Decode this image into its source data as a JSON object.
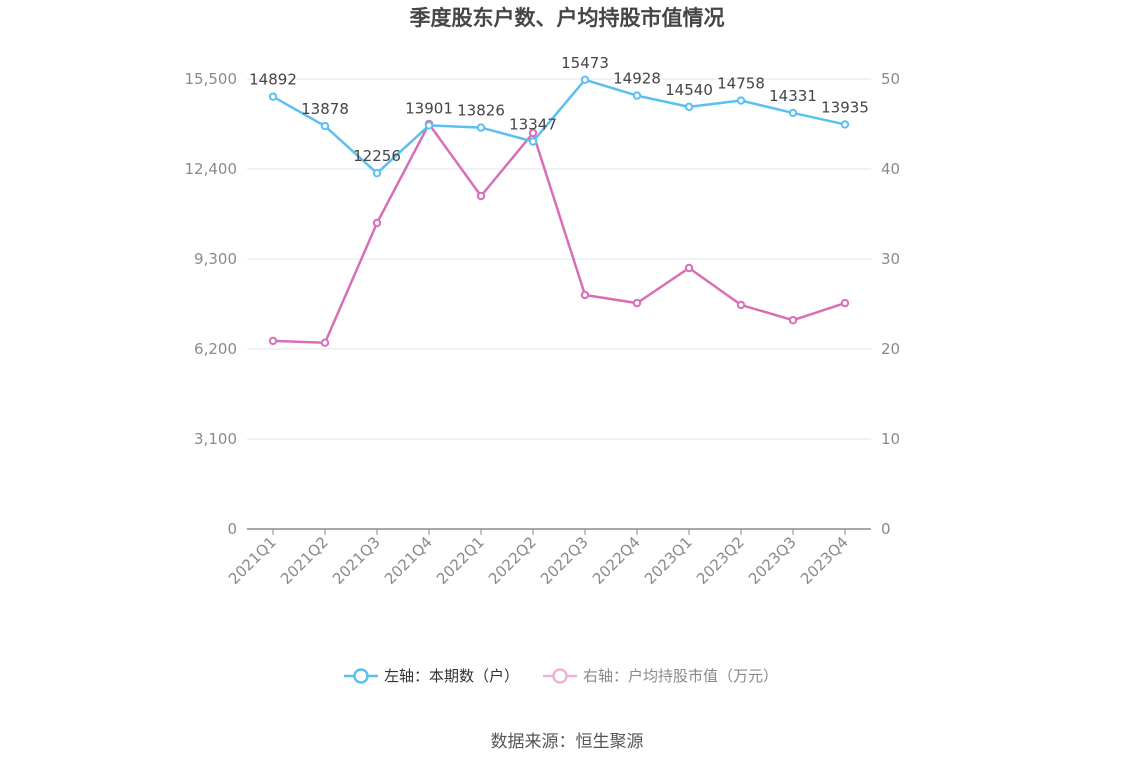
{
  "chart_data": {
    "type": "line",
    "title": "季度股东户数、户均持股市值情况",
    "categories": [
      "2021Q1",
      "2021Q2",
      "2021Q3",
      "2021Q4",
      "2022Q1",
      "2022Q2",
      "2022Q3",
      "2022Q4",
      "2023Q1",
      "2023Q2",
      "2023Q3",
      "2023Q4"
    ],
    "left_axis": {
      "ticks": [
        "0",
        "3,100",
        "6,200",
        "9,300",
        "12,400",
        "15,500"
      ],
      "min": 0,
      "max": 15500
    },
    "right_axis": {
      "ticks": [
        "0",
        "10",
        "20",
        "30",
        "40",
        "50"
      ],
      "min": 0,
      "max": 50
    },
    "series": [
      {
        "name": "左轴：本期数（户）",
        "axis": "left",
        "color": "#5bc0f0",
        "values": [
          14892,
          13878,
          12256,
          13901,
          13826,
          13347,
          15473,
          14928,
          14540,
          14758,
          14331,
          13935
        ],
        "labels": [
          "14892",
          "13878",
          "12256",
          "13901",
          "13826",
          "13347",
          "15473",
          "14928",
          "14540",
          "14758",
          "14331",
          "13935"
        ]
      },
      {
        "name": "右轴：户均持股市值（万元）",
        "axis": "right",
        "color": "#d86fb5",
        "values": [
          20.9,
          20.7,
          34.0,
          45.0,
          37.0,
          44.0,
          26.0,
          25.1,
          29.0,
          24.9,
          23.2,
          25.1
        ]
      }
    ],
    "grid": true,
    "legend_position": "bottom"
  },
  "source": "数据来源：恒生聚源"
}
